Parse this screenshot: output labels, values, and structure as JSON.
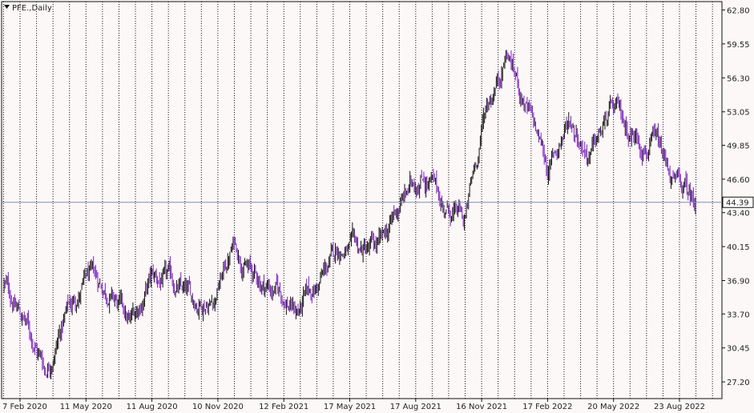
{
  "chart_data": {
    "type": "candlestick",
    "title": "PFE.,Daily",
    "current_price": "44.39",
    "y_ticks": [
      "62.80",
      "59.55",
      "56.30",
      "53.05",
      "49.85",
      "46.60",
      "43.40",
      "40.15",
      "36.90",
      "33.70",
      "30.45",
      "27.20"
    ],
    "ylim": [
      25.6,
      63.6
    ],
    "x_ticks": [
      "7 Feb 2020",
      "11 May 2020",
      "11 Aug 2020",
      "10 Nov 2020",
      "12 Feb 2021",
      "17 May 2021",
      "17 Aug 2021",
      "16 Nov 2021",
      "17 Feb 2022",
      "20 May 2022",
      "23 Aug 2022"
    ],
    "grid": true,
    "colors": {
      "bull": "#111111",
      "bear": "#7a1fc0",
      "grid": "#111111",
      "price_line": "#7f8fb0",
      "background": "#fdf8f8"
    },
    "close_series": [
      {
        "date": "7 Feb 2020",
        "close": 36.5
      },
      {
        "date": "Mar 2020",
        "close": 33.0
      },
      {
        "date": "late Mar 2020",
        "close": 28.5
      },
      {
        "date": "Apr 2020",
        "close": 34.0
      },
      {
        "date": "Apr 2020",
        "close": 37.0
      },
      {
        "date": "11 May 2020",
        "close": 36.0
      },
      {
        "date": "Jun 2020",
        "close": 32.5
      },
      {
        "date": "Jul 2020",
        "close": 37.0
      },
      {
        "date": "11 Aug 2020",
        "close": 36.5
      },
      {
        "date": "Sep 2020",
        "close": 34.8
      },
      {
        "date": "Oct 2020",
        "close": 35.5
      },
      {
        "date": "10 Nov 2020",
        "close": 40.5
      },
      {
        "date": "Dec 2020",
        "close": 37.0
      },
      {
        "date": "Jan 2021",
        "close": 36.0
      },
      {
        "date": "12 Feb 2021",
        "close": 34.0
      },
      {
        "date": "Mar 2021",
        "close": 36.5
      },
      {
        "date": "Apr 2021",
        "close": 40.0
      },
      {
        "date": "17 May 2021",
        "close": 39.5
      },
      {
        "date": "Jun 2021",
        "close": 40.0
      },
      {
        "date": "Jul 2021",
        "close": 44.5
      },
      {
        "date": "17 Aug 2021",
        "close": 47.5
      },
      {
        "date": "Sep 2021",
        "close": 44.0
      },
      {
        "date": "Oct 2021",
        "close": 42.5
      },
      {
        "date": "16 Nov 2021",
        "close": 53.5
      },
      {
        "date": "Dec 2021",
        "close": 59.0
      },
      {
        "date": "Jan 2022",
        "close": 53.0
      },
      {
        "date": "17 Feb 2022",
        "close": 47.5
      },
      {
        "date": "Mar 2022",
        "close": 52.5
      },
      {
        "date": "Apr 2022",
        "close": 49.0
      },
      {
        "date": "20 May 2022",
        "close": 53.0
      },
      {
        "date": "Jun 2022",
        "close": 51.0
      },
      {
        "date": "Jul 2022",
        "close": 50.0
      },
      {
        "date": "23 Aug 2022",
        "close": 46.0
      },
      {
        "date": "end",
        "close": 44.4
      }
    ]
  }
}
